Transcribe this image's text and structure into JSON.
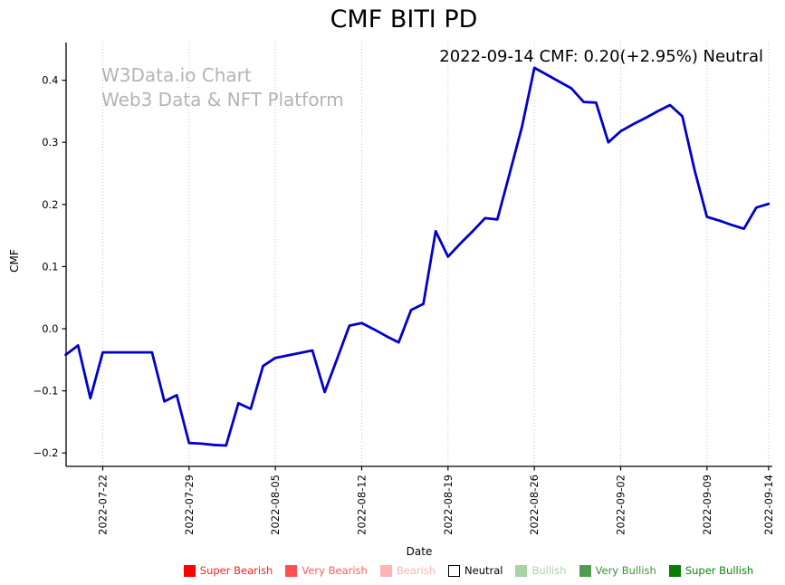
{
  "title": "CMF BITI PD",
  "annotation": "2022-09-14 CMF: 0.20(+2.95%) Neutral",
  "watermark": {
    "line1": "W3Data.io Chart",
    "line2": "Web3 Data & NFT Platform"
  },
  "axes": {
    "x_label": "Date",
    "y_label": "CMF",
    "y_ticks": [
      {
        "label": "0.4",
        "value": 0.4
      },
      {
        "label": "0.3",
        "value": 0.3
      },
      {
        "label": "0.2",
        "value": 0.2
      },
      {
        "label": "0.1",
        "value": 0.1
      },
      {
        "label": "0.0",
        "value": 0.0
      },
      {
        "label": "−0.1",
        "value": -0.1
      },
      {
        "label": "−0.2",
        "value": -0.2
      }
    ],
    "x_ticks": [
      "2022-07-22",
      "2022-07-29",
      "2022-08-05",
      "2022-08-12",
      "2022-08-19",
      "2022-08-26",
      "2022-09-02",
      "2022-09-09",
      "2022-09-14"
    ]
  },
  "colors": {
    "line": "#0000cc",
    "grid": "#b9b9b9",
    "spine": "#000000",
    "tick_text": "#000000",
    "watermark": "#b3b3b3"
  },
  "legend": {
    "items": [
      {
        "label": "Super Bearish",
        "swatch": "#ff0000",
        "text": "#ff1f1f"
      },
      {
        "label": "Very Bearish",
        "swatch": "#ff5050",
        "text": "#ff5c5c"
      },
      {
        "label": "Bearish",
        "swatch": "#ffb3b3",
        "text": "#ffb3b3"
      },
      {
        "label": "Neutral",
        "swatch": "#ffffff",
        "text": "#000000",
        "border": "#000000"
      },
      {
        "label": "Bullish",
        "swatch": "#a8d2a8",
        "text": "#a9d2a9"
      },
      {
        "label": "Very Bullish",
        "swatch": "#4f9e4f",
        "text": "#3c923c"
      },
      {
        "label": "Super Bullish",
        "swatch": "#077d07",
        "text": "#0a870a"
      }
    ]
  },
  "chart_data": {
    "type": "line",
    "title": "CMF BITI PD",
    "xlabel": "Date",
    "ylabel": "CMF",
    "ylim": [
      -0.22,
      0.445
    ],
    "grid": "vertical-dotted",
    "legend_position": "bottom",
    "annotation": "2022-09-14 CMF: 0.20(+2.95%) Neutral",
    "series_name": "CMF",
    "x": [
      "2022-07-19",
      "2022-07-20",
      "2022-07-21",
      "2022-07-22",
      "2022-07-23",
      "2022-07-24",
      "2022-07-25",
      "2022-07-26",
      "2022-07-27",
      "2022-07-28",
      "2022-07-29",
      "2022-07-30",
      "2022-07-31",
      "2022-08-01",
      "2022-08-02",
      "2022-08-03",
      "2022-08-04",
      "2022-08-05",
      "2022-08-06",
      "2022-08-07",
      "2022-08-08",
      "2022-08-09",
      "2022-08-10",
      "2022-08-11",
      "2022-08-12",
      "2022-08-13",
      "2022-08-14",
      "2022-08-15",
      "2022-08-16",
      "2022-08-17",
      "2022-08-18",
      "2022-08-19",
      "2022-08-20",
      "2022-08-21",
      "2022-08-22",
      "2022-08-23",
      "2022-08-24",
      "2022-08-25",
      "2022-08-26",
      "2022-08-27",
      "2022-08-28",
      "2022-08-29",
      "2022-08-30",
      "2022-08-31",
      "2022-09-01",
      "2022-09-02",
      "2022-09-03",
      "2022-09-04",
      "2022-09-05",
      "2022-09-06",
      "2022-09-07",
      "2022-09-08",
      "2022-09-09",
      "2022-09-10",
      "2022-09-11",
      "2022-09-12",
      "2022-09-13",
      "2022-09-14"
    ],
    "values": [
      -0.042,
      -0.027,
      -0.112,
      -0.038,
      -0.038,
      -0.038,
      -0.038,
      -0.038,
      -0.117,
      -0.107,
      -0.184,
      -0.185,
      -0.187,
      -0.188,
      -0.12,
      -0.129,
      -0.06,
      -0.047,
      -0.043,
      -0.039,
      -0.035,
      -0.102,
      -0.049,
      0.005,
      0.009,
      -0.001,
      -0.012,
      -0.022,
      0.03,
      0.04,
      0.157,
      0.116,
      0.137,
      0.157,
      0.178,
      0.176,
      0.25,
      0.325,
      0.42,
      0.409,
      0.398,
      0.387,
      0.365,
      0.364,
      0.3,
      0.318,
      0.329,
      0.339,
      0.35,
      0.36,
      0.342,
      0.255,
      0.18,
      0.174,
      0.167,
      0.161,
      0.195,
      0.201
    ]
  }
}
